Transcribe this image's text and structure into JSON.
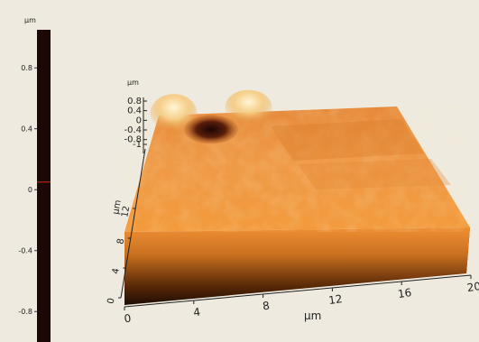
{
  "chart_data": {
    "type": "surface3d",
    "colorbar": {
      "unit": "µm",
      "range": [
        -1.0,
        1.05
      ],
      "tick_labels": [
        "0.8",
        "0.4",
        "0",
        "-0.4",
        "-0.8"
      ],
      "tick_values": [
        0.8,
        0.4,
        0,
        -0.4,
        -0.8
      ],
      "stops": [
        {
          "value": -1.0,
          "color": "#1c0606"
        },
        {
          "value": -0.6,
          "color": "#5e1f0c"
        },
        {
          "value": -0.2,
          "color": "#a8470f"
        },
        {
          "value": 0.0,
          "color": "#e07518"
        },
        {
          "value": 0.3,
          "color": "#f2a545"
        },
        {
          "value": 0.6,
          "color": "#f8cf85"
        },
        {
          "value": 0.9,
          "color": "#fdf0c2"
        },
        {
          "value": 1.05,
          "color": "#ffffee"
        }
      ],
      "marker_value": 0.05,
      "marker_color": "#cc3300"
    },
    "x_axis": {
      "unit": "µm",
      "tick_labels": [
        "0",
        "4",
        "8",
        "12",
        "16",
        "20"
      ],
      "tick_values": [
        0,
        4,
        8,
        12,
        16,
        20
      ]
    },
    "y_axis": {
      "unit": "µm",
      "tick_labels": [
        "0",
        "4",
        "8",
        "12"
      ],
      "tick_values": [
        0,
        4,
        8,
        12
      ]
    },
    "z_axis": {
      "unit": "µm",
      "tick_labels": [
        "0.8",
        "0.4",
        "0",
        "-0.4",
        "-0.8",
        "-1"
      ],
      "tick_values": [
        0.8,
        0.4,
        0,
        -0.4,
        -0.8,
        -1.0
      ]
    },
    "features": [
      {
        "kind": "peak",
        "x": 1.5,
        "y": 19.5,
        "height": 0.9
      },
      {
        "kind": "peak",
        "x": 7.5,
        "y": 20.5,
        "height": 0.8
      },
      {
        "kind": "pit",
        "x": 4.5,
        "y": 19.0,
        "depth": -0.8
      }
    ]
  }
}
